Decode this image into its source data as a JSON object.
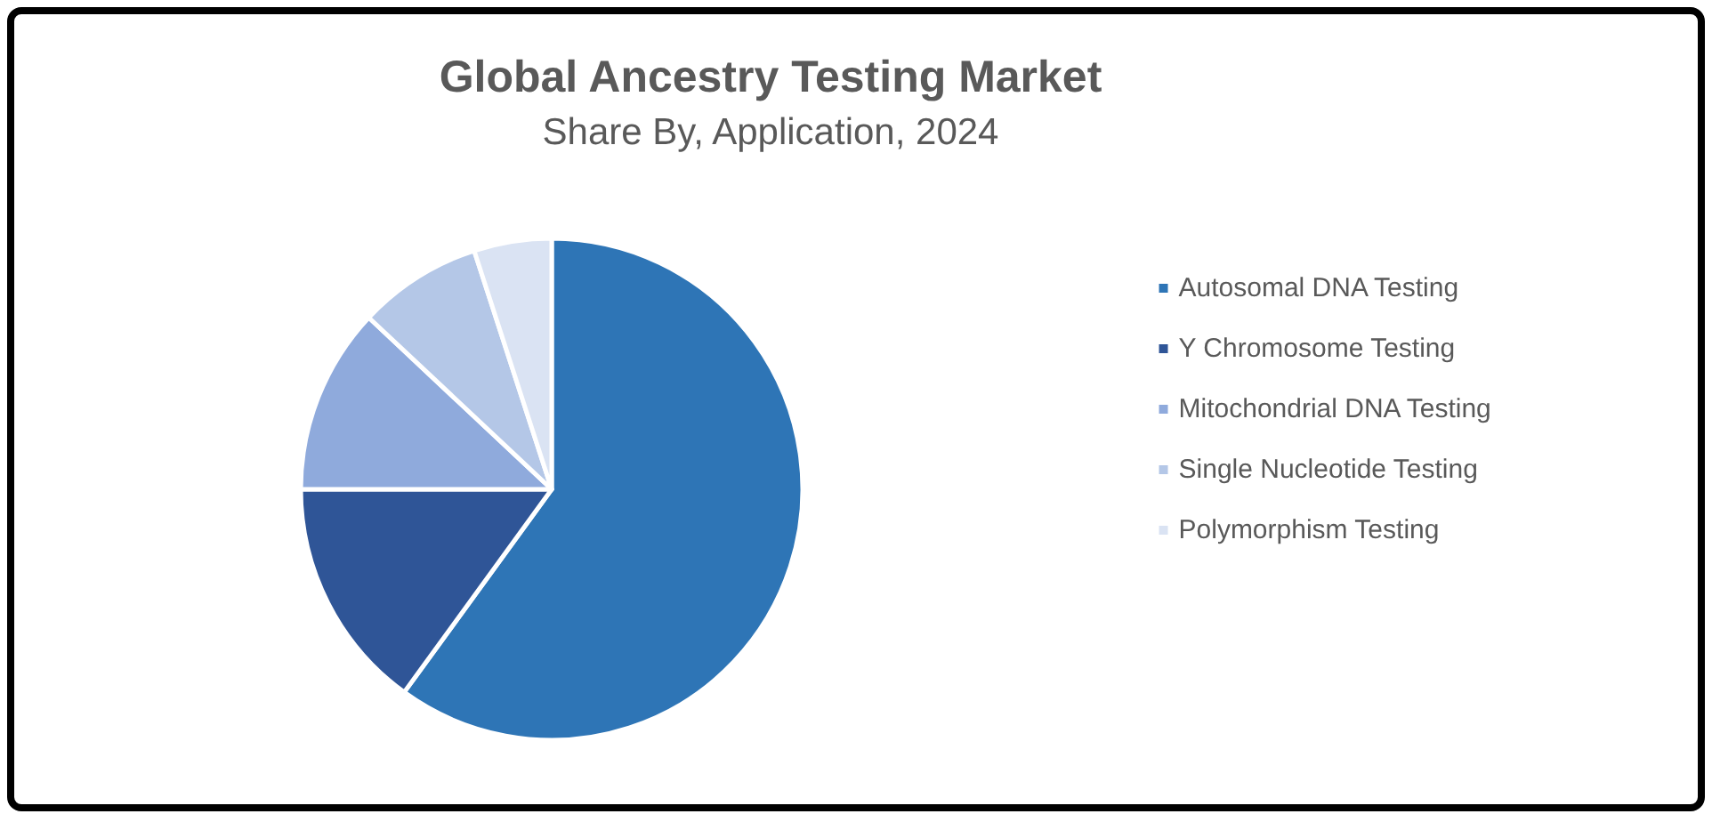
{
  "chart_data": {
    "type": "pie",
    "title": "Global Ancestry Testing Market",
    "subtitle": "Share By, Application, 2024",
    "categories": [
      "Autosomal DNA Testing",
      "Y Chromosome Testing",
      "Mitochondrial DNA Testing",
      "Single Nucleotide Testing",
      "Polymorphism Testing"
    ],
    "values": [
      60,
      15,
      12,
      8,
      5
    ],
    "colors": [
      "#2e75b6",
      "#2f5597",
      "#8faadc",
      "#b4c7e7",
      "#dae3f3"
    ],
    "legend": "right"
  }
}
